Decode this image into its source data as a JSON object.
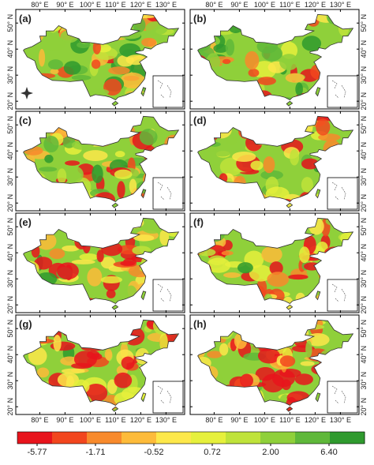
{
  "panels": [
    {
      "label": "(a)"
    },
    {
      "label": "(b)"
    },
    {
      "label": "(c)"
    },
    {
      "label": "(d)"
    },
    {
      "label": "(e)"
    },
    {
      "label": "(f)"
    },
    {
      "label": "(g)"
    },
    {
      "label": "(h)"
    }
  ],
  "lon_ticks": [
    "80° E",
    "90° E",
    "100° E",
    "110° E",
    "120° E",
    "130° E"
  ],
  "lat_ticks": [
    "50° N",
    "40° N",
    "30° N",
    "20° N"
  ],
  "legend": {
    "ticks": [
      -5.77,
      -1.71,
      -0.52,
      0.72,
      {
        "value": 2,
        "label": "2.00"
      },
      {
        "value": 6.4,
        "label": "6.40"
      }
    ],
    "colors": [
      "#e8141c",
      "#f2461e",
      "#f88a2c",
      "#fdbb3a",
      "#fde84a",
      "#e6f03c",
      "#bfe33a",
      "#8fd03a",
      "#5fb83a",
      "#2f9a2e"
    ]
  }
}
